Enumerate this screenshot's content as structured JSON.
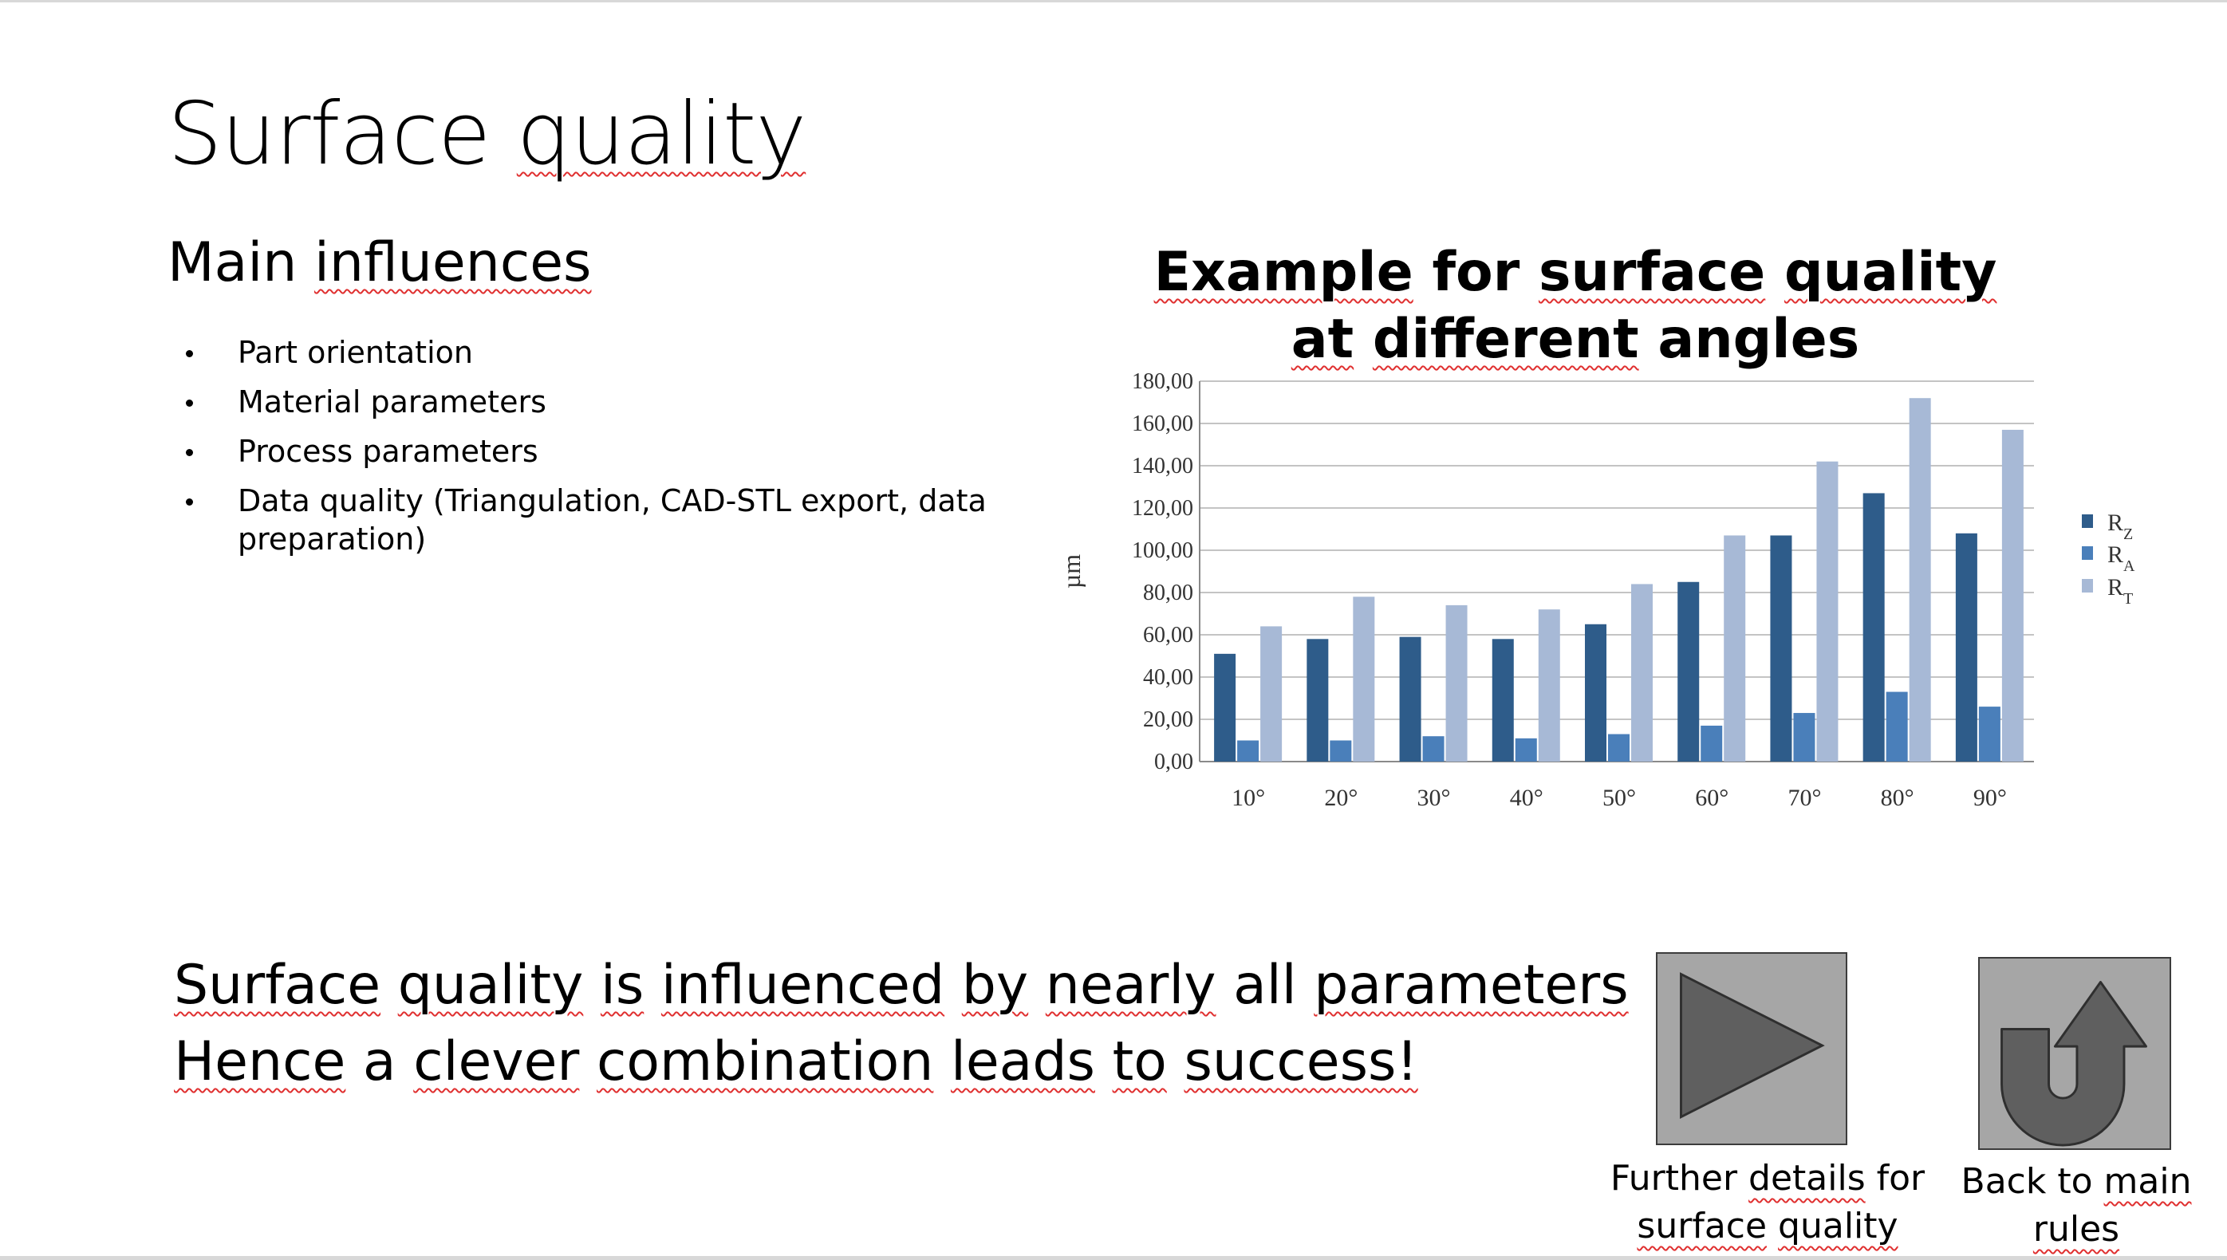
{
  "slide": {
    "title": "Surface quality",
    "section_heading": "Main influences",
    "influences": [
      "Part orientation",
      "Material parameters",
      "Process parameters",
      "Data quality (Triangulation, CAD-STL export, data preparation)"
    ],
    "chart_title": "Example for surface quality at different angles",
    "conclusion_line1": "Surface quality is influenced by nearly all parameters",
    "conclusion_line2": "Hence a clever combination leads to success!",
    "nav": {
      "details_caption": "Further details for surface quality",
      "back_caption": "Back to main rules",
      "details_icon": "play-arrow-icon",
      "back_icon": "u-turn-arrow-icon"
    }
  },
  "chart_data": {
    "type": "bar",
    "title": "Example for surface quality at different angles",
    "ylabel": "µm",
    "xlabel": "",
    "categories": [
      "10°",
      "20°",
      "30°",
      "40°",
      "50°",
      "60°",
      "70°",
      "80°",
      "90°"
    ],
    "series": [
      {
        "name": "R_Z",
        "color": "#2e5c8a",
        "values": [
          51,
          58,
          59,
          58,
          65,
          85,
          107,
          127,
          108
        ]
      },
      {
        "name": "R_A",
        "color": "#4a7fba",
        "values": [
          10,
          10,
          12,
          11,
          13,
          17,
          23,
          33,
          26
        ]
      },
      {
        "name": "R_T",
        "color": "#a7b9d6",
        "values": [
          64,
          78,
          74,
          72,
          84,
          107,
          142,
          172,
          157
        ]
      }
    ],
    "ylim": [
      0,
      180
    ],
    "yticks": [
      "0,00",
      "20,00",
      "40,00",
      "60,00",
      "80,00",
      "100,00",
      "120,00",
      "140,00",
      "160,00",
      "180,00"
    ],
    "grid": true,
    "legend_position": "right"
  }
}
